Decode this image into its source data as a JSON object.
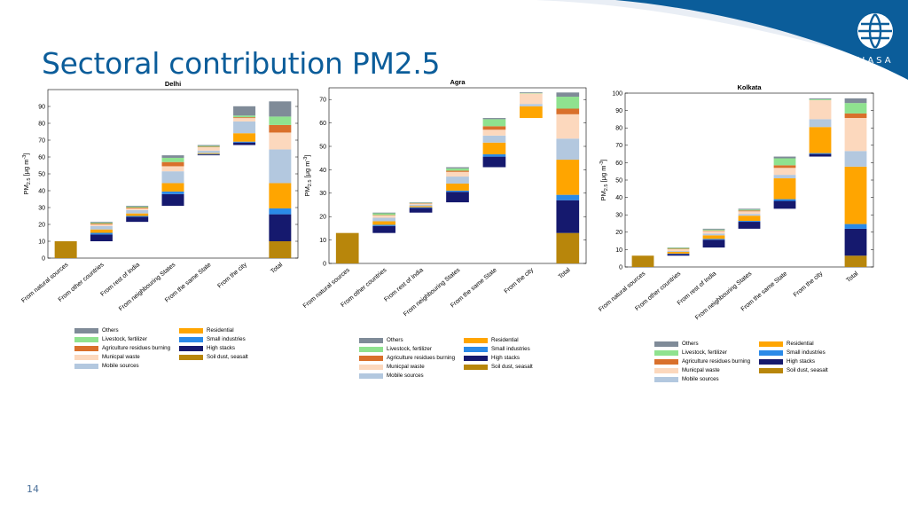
{
  "slide": {
    "title": "Sectoral contribution PM2.5",
    "slide_number": "14",
    "logo_text": "IIASA"
  },
  "colors": {
    "Others": "#7f8b98",
    "Livestock, fertilizer": "#8fe28f",
    "Agriculture residues burning": "#d9702b",
    "Municpal waste": "#fcd8bd",
    "Mobile sources": "#b3c8df",
    "Residential": "#ffa500",
    "Small industries": "#2a8ae8",
    "High stacks": "#15196e",
    "Soil dust, seasalt": "#b8860b"
  },
  "chart_data": [
    {
      "type": "bar",
      "subtype": "waterfall-stacked",
      "title": "Delhi",
      "ylabel": "PM2.5 [μg m-3]",
      "ylim": [
        0,
        100
      ],
      "yticks": [
        0,
        10,
        20,
        30,
        40,
        50,
        60,
        70,
        80,
        90
      ],
      "categories": [
        "From natural sources",
        "From other countries",
        "From rest of India",
        "From neighbouring States",
        "From the same State",
        "From the city",
        "Total"
      ],
      "series": [
        {
          "name": "Soil dust, seasalt",
          "values": [
            10,
            0,
            0,
            0,
            0,
            0,
            10
          ]
        },
        {
          "name": "High stacks",
          "values": [
            0,
            4,
            3,
            7,
            0.5,
            1.5,
            16
          ]
        },
        {
          "name": "Small industries",
          "values": [
            0,
            1,
            0.5,
            1.5,
            0.3,
            0.5,
            3.5
          ]
        },
        {
          "name": "Residential",
          "values": [
            0,
            2,
            1.5,
            5,
            0.5,
            5,
            15
          ]
        },
        {
          "name": "Mobile sources",
          "values": [
            0,
            2,
            2,
            7,
            1.5,
            7,
            20
          ]
        },
        {
          "name": "Municpal waste",
          "values": [
            0,
            1,
            1,
            3,
            2,
            2,
            10
          ]
        },
        {
          "name": "Agriculture residues burning",
          "values": [
            0,
            0.5,
            0.5,
            2.5,
            0.3,
            0.5,
            4.5
          ]
        },
        {
          "name": "Livestock, fertilizer",
          "values": [
            0,
            0.5,
            0.5,
            2.5,
            0.5,
            1,
            5
          ]
        },
        {
          "name": "Others",
          "values": [
            0,
            0.5,
            0.5,
            1.5,
            0.5,
            5.5,
            9
          ]
        }
      ]
    },
    {
      "type": "bar",
      "subtype": "waterfall-stacked",
      "title": "Agra",
      "ylabel": "PM2.5 [μg m-3]",
      "ylim": [
        0,
        75
      ],
      "yticks": [
        0,
        10,
        20,
        30,
        40,
        50,
        60,
        70
      ],
      "categories": [
        "From natural sources",
        "From other countries",
        "From rest of India",
        "From neighbouring States",
        "From the same State",
        "From the city",
        "Total"
      ],
      "series": [
        {
          "name": "Soil dust, seasalt",
          "values": [
            13,
            0,
            0,
            0,
            0,
            0,
            13
          ]
        },
        {
          "name": "High stacks",
          "values": [
            0,
            3,
            2,
            4.5,
            4.5,
            0,
            14
          ]
        },
        {
          "name": "Small industries",
          "values": [
            0,
            0.5,
            0.3,
            0.5,
            1,
            0,
            2.3
          ]
        },
        {
          "name": "Residential",
          "values": [
            0,
            1.5,
            0.5,
            3,
            5,
            5,
            15
          ]
        },
        {
          "name": "Mobile sources",
          "values": [
            0,
            1.5,
            0.6,
            3,
            3,
            1,
            9
          ]
        },
        {
          "name": "Municpal waste",
          "values": [
            0,
            1,
            0.4,
            2,
            2.5,
            4.5,
            10.4
          ]
        },
        {
          "name": "Agriculture residues burning",
          "values": [
            0,
            0.2,
            0.2,
            0.5,
            1.5,
            0,
            2.4
          ]
        },
        {
          "name": "Livestock, fertilizer",
          "values": [
            0,
            0.7,
            0.2,
            1,
            3,
            0.2,
            5.1
          ]
        },
        {
          "name": "Others",
          "values": [
            0,
            0.3,
            0.2,
            0.5,
            0.5,
            0.3,
            1.8
          ]
        }
      ]
    },
    {
      "type": "bar",
      "subtype": "waterfall-stacked",
      "title": "Kolkata",
      "ylabel": "PM2.5 [μg m-3]",
      "ylim": [
        0,
        100
      ],
      "yticks": [
        0,
        10,
        20,
        30,
        40,
        50,
        60,
        70,
        80,
        90,
        100
      ],
      "categories": [
        "From natural sources",
        "From other countries",
        "From rest of India",
        "From neighbouring States",
        "From the same State",
        "From the city",
        "Total"
      ],
      "series": [
        {
          "name": "Soil dust, seasalt",
          "values": [
            6.5,
            0,
            0,
            0,
            0,
            0,
            6.5
          ]
        },
        {
          "name": "High stacks",
          "values": [
            0,
            1,
            4.5,
            4,
            4.5,
            1.5,
            15.5
          ]
        },
        {
          "name": "Small industries",
          "values": [
            0,
            0.2,
            0.5,
            0.5,
            1,
            0.5,
            2.7
          ]
        },
        {
          "name": "Residential",
          "values": [
            0,
            1,
            2,
            3,
            12,
            15,
            33
          ]
        },
        {
          "name": "Mobile sources",
          "values": [
            0,
            0.5,
            1,
            1,
            2,
            4.5,
            9
          ]
        },
        {
          "name": "Municpal waste",
          "values": [
            0,
            1,
            1.5,
            1.5,
            4,
            11,
            19
          ]
        },
        {
          "name": "Agriculture residues burning",
          "values": [
            0,
            0.3,
            0.3,
            0.5,
            1.5,
            0,
            2.6
          ]
        },
        {
          "name": "Livestock, fertilizer",
          "values": [
            0,
            0.5,
            0.5,
            0.5,
            4,
            0.5,
            6
          ]
        },
        {
          "name": "Others",
          "values": [
            0,
            0.2,
            0.5,
            0.5,
            1,
            0.5,
            2.7
          ]
        }
      ]
    }
  ],
  "legend": {
    "left_column": [
      "Others",
      "Livestock, fertilizer",
      "Agriculture residues burning",
      "Municpal waste",
      "Mobile sources"
    ],
    "right_column": [
      "Residential",
      "Small industries",
      "High stacks",
      "Soil dust, seasalt"
    ]
  }
}
